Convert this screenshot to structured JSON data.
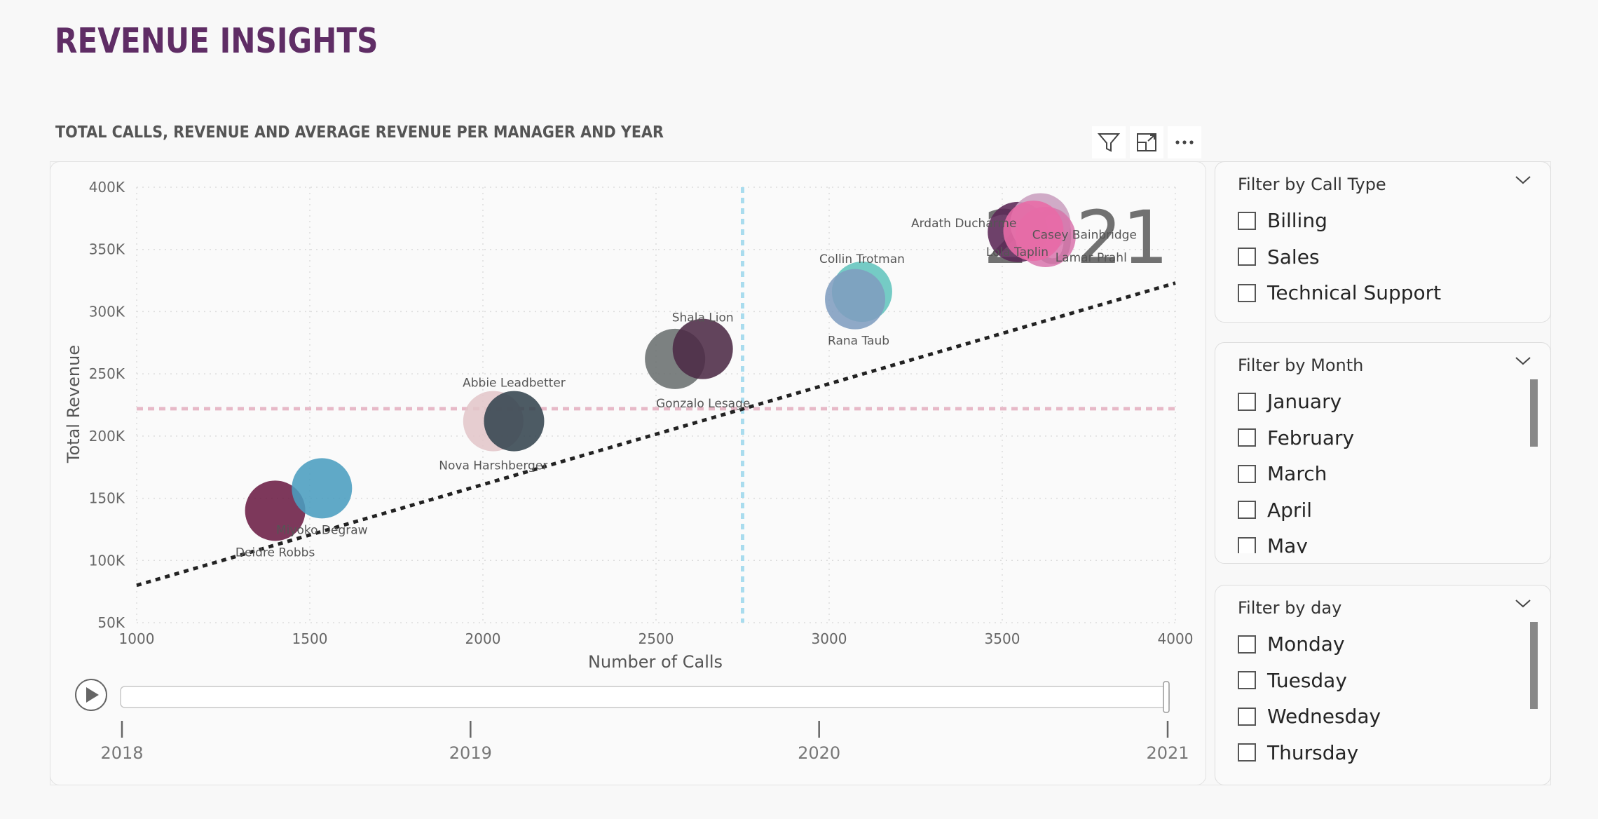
{
  "page": {
    "title": "REVENUE INSIGHTS"
  },
  "visual": {
    "title": "TOTAL CALLS, REVENUE AND AVERAGE REVENUE PER MANAGER AND YEAR",
    "toolbar": {
      "filter_icon": "filter-icon",
      "focus_icon": "focus-mode-icon",
      "more_icon": "more-options-icon"
    }
  },
  "chart_data": {
    "type": "scatter",
    "xlabel": "Number of Calls",
    "ylabel": "Total Revenue",
    "xlim": [
      1000,
      4000
    ],
    "ylim": [
      50000,
      400000
    ],
    "x_ticks": [
      "1000",
      "1500",
      "2000",
      "2500",
      "3000",
      "3500",
      "4000"
    ],
    "y_ticks": [
      "400K",
      "350K",
      "300K",
      "250K",
      "200K",
      "150K",
      "100K",
      "50K"
    ],
    "year_watermark": "2021",
    "x_reference_line": 2750,
    "y_reference_line": 222000,
    "trendline": {
      "x": [
        1000,
        4000
      ],
      "y": [
        80000,
        323000
      ]
    },
    "points": [
      {
        "label": "Deidre Robbs",
        "x": 1400,
        "y": 140000,
        "color": "#6b1d44"
      },
      {
        "label": "Miyoko Degraw",
        "x": 1535,
        "y": 158000,
        "color": "#4a9dbf"
      },
      {
        "label": "Nova Harshberger",
        "x": 2030,
        "y": 212000,
        "color": "#e2c6ca"
      },
      {
        "label": "Abbie Leadbetter",
        "x": 2090,
        "y": 212000,
        "color": "#34444f"
      },
      {
        "label": "Gonzalo Lesage",
        "x": 2555,
        "y": 262000,
        "color": "#6a7070"
      },
      {
        "label": "Shala Lion",
        "x": 2635,
        "y": 270000,
        "color": "#4c2a45"
      },
      {
        "label": "Collin Trotman",
        "x": 3095,
        "y": 316000,
        "color": "#62c4bd"
      },
      {
        "label": "Rana Taub",
        "x": 3075,
        "y": 310000,
        "color": "#7f9dbf"
      },
      {
        "label": "Ardath Ducharme",
        "x": 3545,
        "y": 364000,
        "color": "#5a2755"
      },
      {
        "label": "Casey Bainbridge",
        "x": 3610,
        "y": 371000,
        "color": "#c99fbf"
      },
      {
        "label": "Lamar Prahl",
        "x": 3625,
        "y": 360000,
        "color": "#d978ae"
      },
      {
        "label": "Lola Taplin",
        "x": 3590,
        "y": 365000,
        "color": "#e86aa6"
      }
    ],
    "play_axis": {
      "ticks": [
        "2018",
        "2019",
        "2020",
        "2021"
      ],
      "current": "2021"
    }
  },
  "slicers": [
    {
      "title": "Filter by Call Type",
      "items": [
        "Billing",
        "Sales",
        "Technical Support"
      ]
    },
    {
      "title": "Filter by Month",
      "items": [
        "January",
        "February",
        "March",
        "April",
        "May"
      ]
    },
    {
      "title": "Filter by day",
      "items": [
        "Monday",
        "Tuesday",
        "Wednesday",
        "Thursday"
      ]
    }
  ]
}
